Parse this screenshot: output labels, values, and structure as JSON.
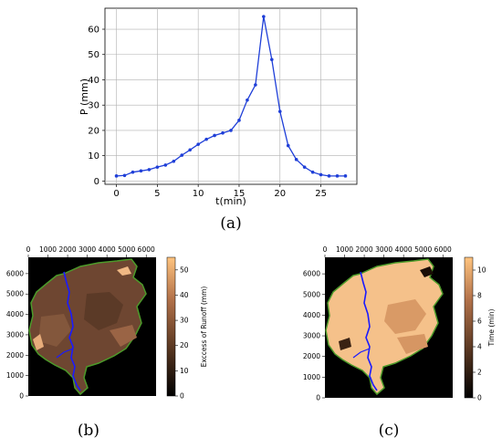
{
  "labels": {
    "a": "(a)",
    "b": "(b)",
    "c": "(c)"
  },
  "chart_data": [
    {
      "id": "a",
      "type": "line",
      "xlabel": "t(min)",
      "ylabel": "P (mm)",
      "xlim": [
        -1.4,
        29.4
      ],
      "ylim": [
        -1.3,
        68.3
      ],
      "xticks": [
        0,
        5,
        10,
        15,
        20,
        25
      ],
      "yticks": [
        0,
        10,
        20,
        30,
        40,
        50,
        60
      ],
      "grid": true,
      "color": "#1f3fd8",
      "x": [
        0,
        1,
        2,
        3,
        4,
        5,
        6,
        7,
        8,
        9,
        10,
        11,
        12,
        13,
        14,
        15,
        16,
        17,
        18,
        19,
        20,
        21,
        22,
        23,
        24,
        25,
        26,
        27,
        28
      ],
      "y": [
        2,
        2.2,
        3.5,
        4,
        4.5,
        5.5,
        6.3,
        7.8,
        10.2,
        12.3,
        14.5,
        16.5,
        18,
        19,
        20,
        24,
        32,
        38,
        65,
        48,
        27.5,
        14,
        8.5,
        5.5,
        3.5,
        2.5,
        2,
        2,
        2
      ]
    },
    {
      "id": "b",
      "type": "heatmap",
      "xticks": [
        0,
        1000,
        2000,
        3000,
        4000,
        5000,
        6000
      ],
      "yticks": [
        0,
        1000,
        2000,
        3000,
        4000,
        5000,
        6000
      ],
      "colorbar_label": "Exccess of Runoff (mm)",
      "colorbar_ticks": [
        0,
        10,
        20,
        30,
        40,
        50
      ],
      "colorbar_range": [
        0,
        55
      ],
      "colormap": "copper"
    },
    {
      "id": "c",
      "type": "heatmap",
      "xticks": [
        0,
        1000,
        2000,
        3000,
        4000,
        5000,
        6000
      ],
      "yticks": [
        0,
        1000,
        2000,
        3000,
        4000,
        5000,
        6000
      ],
      "colorbar_label": "Time (min)",
      "colorbar_ticks": [
        0,
        2,
        4,
        6,
        8,
        10
      ],
      "colorbar_range": [
        0,
        11
      ],
      "colormap": "copper"
    }
  ]
}
